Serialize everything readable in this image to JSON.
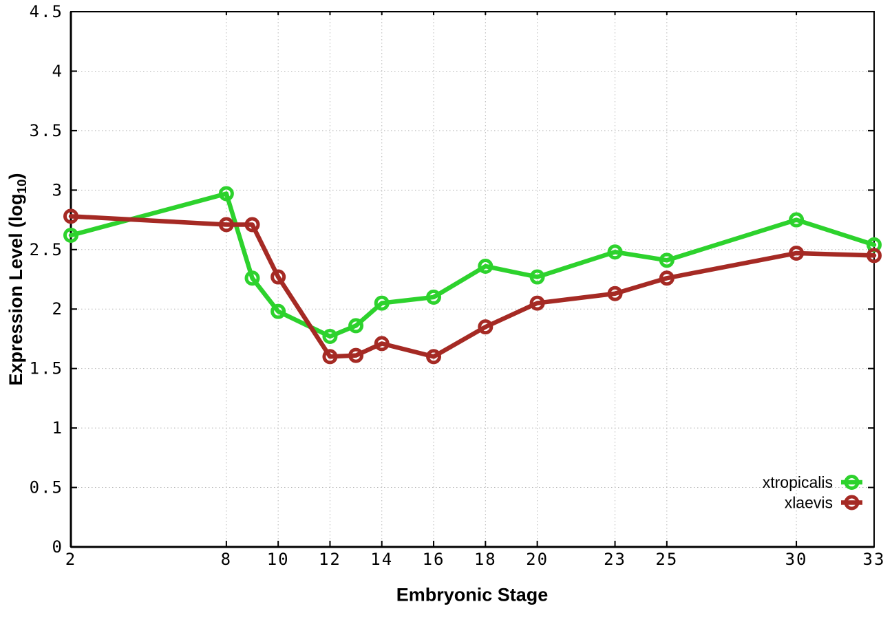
{
  "chart_data": {
    "type": "line",
    "title": "",
    "xlabel": "Embryonic Stage",
    "ylabel": "Expression Level (log10)",
    "ylabel_parts": {
      "main": "Expression Level (log",
      "sub": "10",
      "end": ")"
    },
    "xlim": [
      2,
      33
    ],
    "ylim": [
      0,
      4.5
    ],
    "xticks": [
      2,
      8,
      10,
      12,
      14,
      16,
      18,
      20,
      23,
      25,
      30,
      33
    ],
    "yticks": [
      0,
      0.5,
      1,
      1.5,
      2,
      2.5,
      3,
      3.5,
      4,
      4.5
    ],
    "ytick_labels": [
      "0",
      "0.5",
      "1",
      "1.5",
      "2",
      "2.5",
      "3",
      "3.5",
      "4",
      "4.5"
    ],
    "grid": true,
    "legend_position": "inside-right",
    "x": [
      2,
      8,
      9,
      10,
      12,
      13,
      14,
      16,
      18,
      20,
      23,
      25,
      30,
      33
    ],
    "series": [
      {
        "name": "xtropicalis",
        "color": "#2dd22d",
        "values": [
          2.62,
          2.97,
          2.26,
          1.98,
          1.77,
          1.86,
          2.05,
          2.1,
          2.36,
          2.27,
          2.48,
          2.41,
          2.75,
          2.54
        ]
      },
      {
        "name": "xlaevis",
        "color": "#a52a24",
        "values": [
          2.78,
          2.71,
          2.71,
          2.27,
          1.6,
          1.61,
          1.71,
          1.6,
          1.85,
          2.05,
          2.13,
          2.26,
          2.47,
          2.45
        ]
      }
    ]
  },
  "colors": {
    "background": "#ffffff",
    "grid": "#b5b5b5",
    "axis": "#000000",
    "text": "#000000"
  }
}
